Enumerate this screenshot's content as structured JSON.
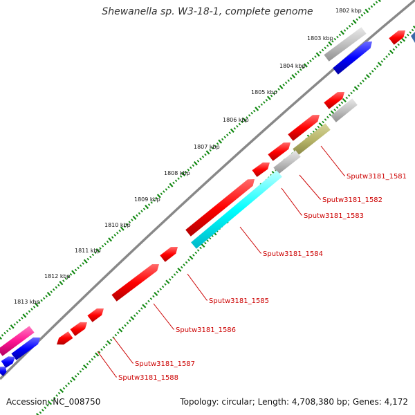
{
  "title": "Shewanella sp. W3-18-1, complete genome",
  "footer": {
    "accession": "Accession: NC_008750",
    "info": "Topology: circular; Length: 4,708,380 bp; Genes: 4,172"
  },
  "kbp_labels": [
    "1802 kbp",
    "1803 kbp",
    "1804 kbp",
    "1805 kbp",
    "1806 kbp",
    "1807 kbp",
    "1808 kbp",
    "1809 kbp",
    "1810 kbp",
    "1811 kbp",
    "1812 kbp",
    "1813 kbp"
  ],
  "gene_labels": [
    "Sputw3181_1581",
    "Sputw3181_1582",
    "Sputw3181_1583",
    "Sputw3181_1584",
    "Sputw3181_1585",
    "Sputw3181_1586",
    "Sputw3181_1587",
    "Sputw3181_1588"
  ],
  "colors": {
    "cds": "#ff0000",
    "trna": "#0000ff",
    "gray": "#c0c0c0",
    "cyan": "#00ffff",
    "olive": "#b8b66a",
    "pink": "#ff1493",
    "backbone": "#888888",
    "tick": "#118811",
    "label": "#cc0000"
  }
}
